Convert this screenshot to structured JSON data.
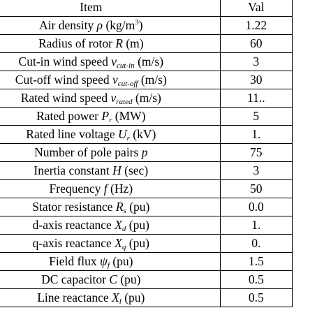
{
  "table": {
    "headers": {
      "item": "Item",
      "value": "Val"
    },
    "rows": [
      {
        "pre": "Air density ",
        "sym": "ρ",
        "sub": "",
        "post": " (kg/m",
        "sup": "3",
        "end": ")",
        "value": "1.22"
      },
      {
        "pre": "Radius of rotor ",
        "sym": "R",
        "sub": "",
        "post": " (m)",
        "sup": "",
        "end": "",
        "value": "60"
      },
      {
        "pre": "Cut-in wind speed ",
        "sym": "v",
        "sub": "cut-in",
        "post": " (m/s)",
        "sup": "",
        "end": "",
        "value": "3"
      },
      {
        "pre": "Cut-off wind speed ",
        "sym": "v",
        "sub": "cut-off",
        "post": " (m/s)",
        "sup": "",
        "end": "",
        "value": "30"
      },
      {
        "pre": "Rated wind speed ",
        "sym": "v",
        "sub": "rated",
        "post": " (m/s)",
        "sup": "",
        "end": "",
        "value": "11.."
      },
      {
        "pre": "Rated power ",
        "sym": "P",
        "sub": "r",
        "post": " (MW)",
        "sup": "",
        "end": "",
        "value": "5"
      },
      {
        "pre": "Rated line voltage ",
        "sym": "U",
        "sub": "r",
        "post": " (kV)",
        "sup": "",
        "end": "",
        "value": "1."
      },
      {
        "pre": "Number of pole pairs ",
        "sym": "p",
        "sub": "",
        "post": "",
        "sup": "",
        "end": "",
        "value": "75"
      },
      {
        "pre": "Inertia constant ",
        "sym": "H",
        "sub": "",
        "post": " (sec)",
        "sup": "",
        "end": "",
        "value": "3"
      },
      {
        "pre": "Frequency ",
        "sym": "f",
        "sub": "",
        "post": " (Hz)",
        "sup": "",
        "end": "",
        "value": "50"
      },
      {
        "pre": "Stator resistance ",
        "sym": "R",
        "sub": "s",
        "post": " (pu)",
        "sup": "",
        "end": "",
        "value": "0.0"
      },
      {
        "pre": "d-axis reactance ",
        "sym": "X",
        "sub": "d",
        "post": " (pu)",
        "sup": "",
        "end": "",
        "value": "1."
      },
      {
        "pre": "q-axis reactance ",
        "sym": "X",
        "sub": "q",
        "post": " (pu)",
        "sup": "",
        "end": "",
        "value": "0."
      },
      {
        "pre": "Field flux ",
        "sym": "ψ",
        "sub": "f",
        "post": " (pu)",
        "sup": "",
        "end": "",
        "value": "1.5"
      },
      {
        "pre": "DC capacitor ",
        "sym": "C",
        "sub": "",
        "post": " (pu)",
        "sup": "",
        "end": "",
        "value": "0.5"
      },
      {
        "pre": "Line reactance ",
        "sym": "X",
        "sub": "l",
        "post": " (pu)",
        "sup": "",
        "end": "",
        "value": "0.5"
      }
    ]
  }
}
